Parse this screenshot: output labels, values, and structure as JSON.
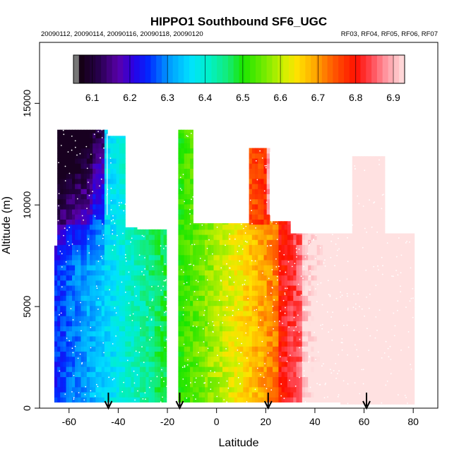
{
  "chart_data": {
    "type": "heatmap",
    "title": "HIPPO1 Southbound SF6_UGC",
    "dates_text": "20090112, 20090114, 20090116, 20090118, 20090120",
    "flights_text": "RF03, RF04, RF05, RF06, RF07",
    "xlabel": "Latitude",
    "ylabel": "Altitude (m)",
    "xlim": [
      -72,
      90
    ],
    "ylim": [
      0,
      18000
    ],
    "x_ticks": [
      "-60",
      "-40",
      "-20",
      "0",
      "20",
      "40",
      "60",
      "80"
    ],
    "y_ticks": [
      "0",
      "5000",
      "10000",
      "15000"
    ],
    "colorbar": {
      "range": [
        6.05,
        6.93
      ],
      "tick_labels": [
        "6.1",
        "6.2",
        "6.3",
        "6.4",
        "6.5",
        "6.6",
        "6.7",
        "6.8",
        "6.9"
      ]
    },
    "arrows_latitude": [
      -44,
      -15,
      21,
      61
    ],
    "gap_latitude": [
      -20,
      -15
    ],
    "colors": {
      "low": "#1a0040",
      "mid_low": "#00e5ff",
      "mid": "#19e600",
      "mid_high": "#ffea00",
      "high": "#ff1a00",
      "top": "#ffd0d0"
    }
  }
}
